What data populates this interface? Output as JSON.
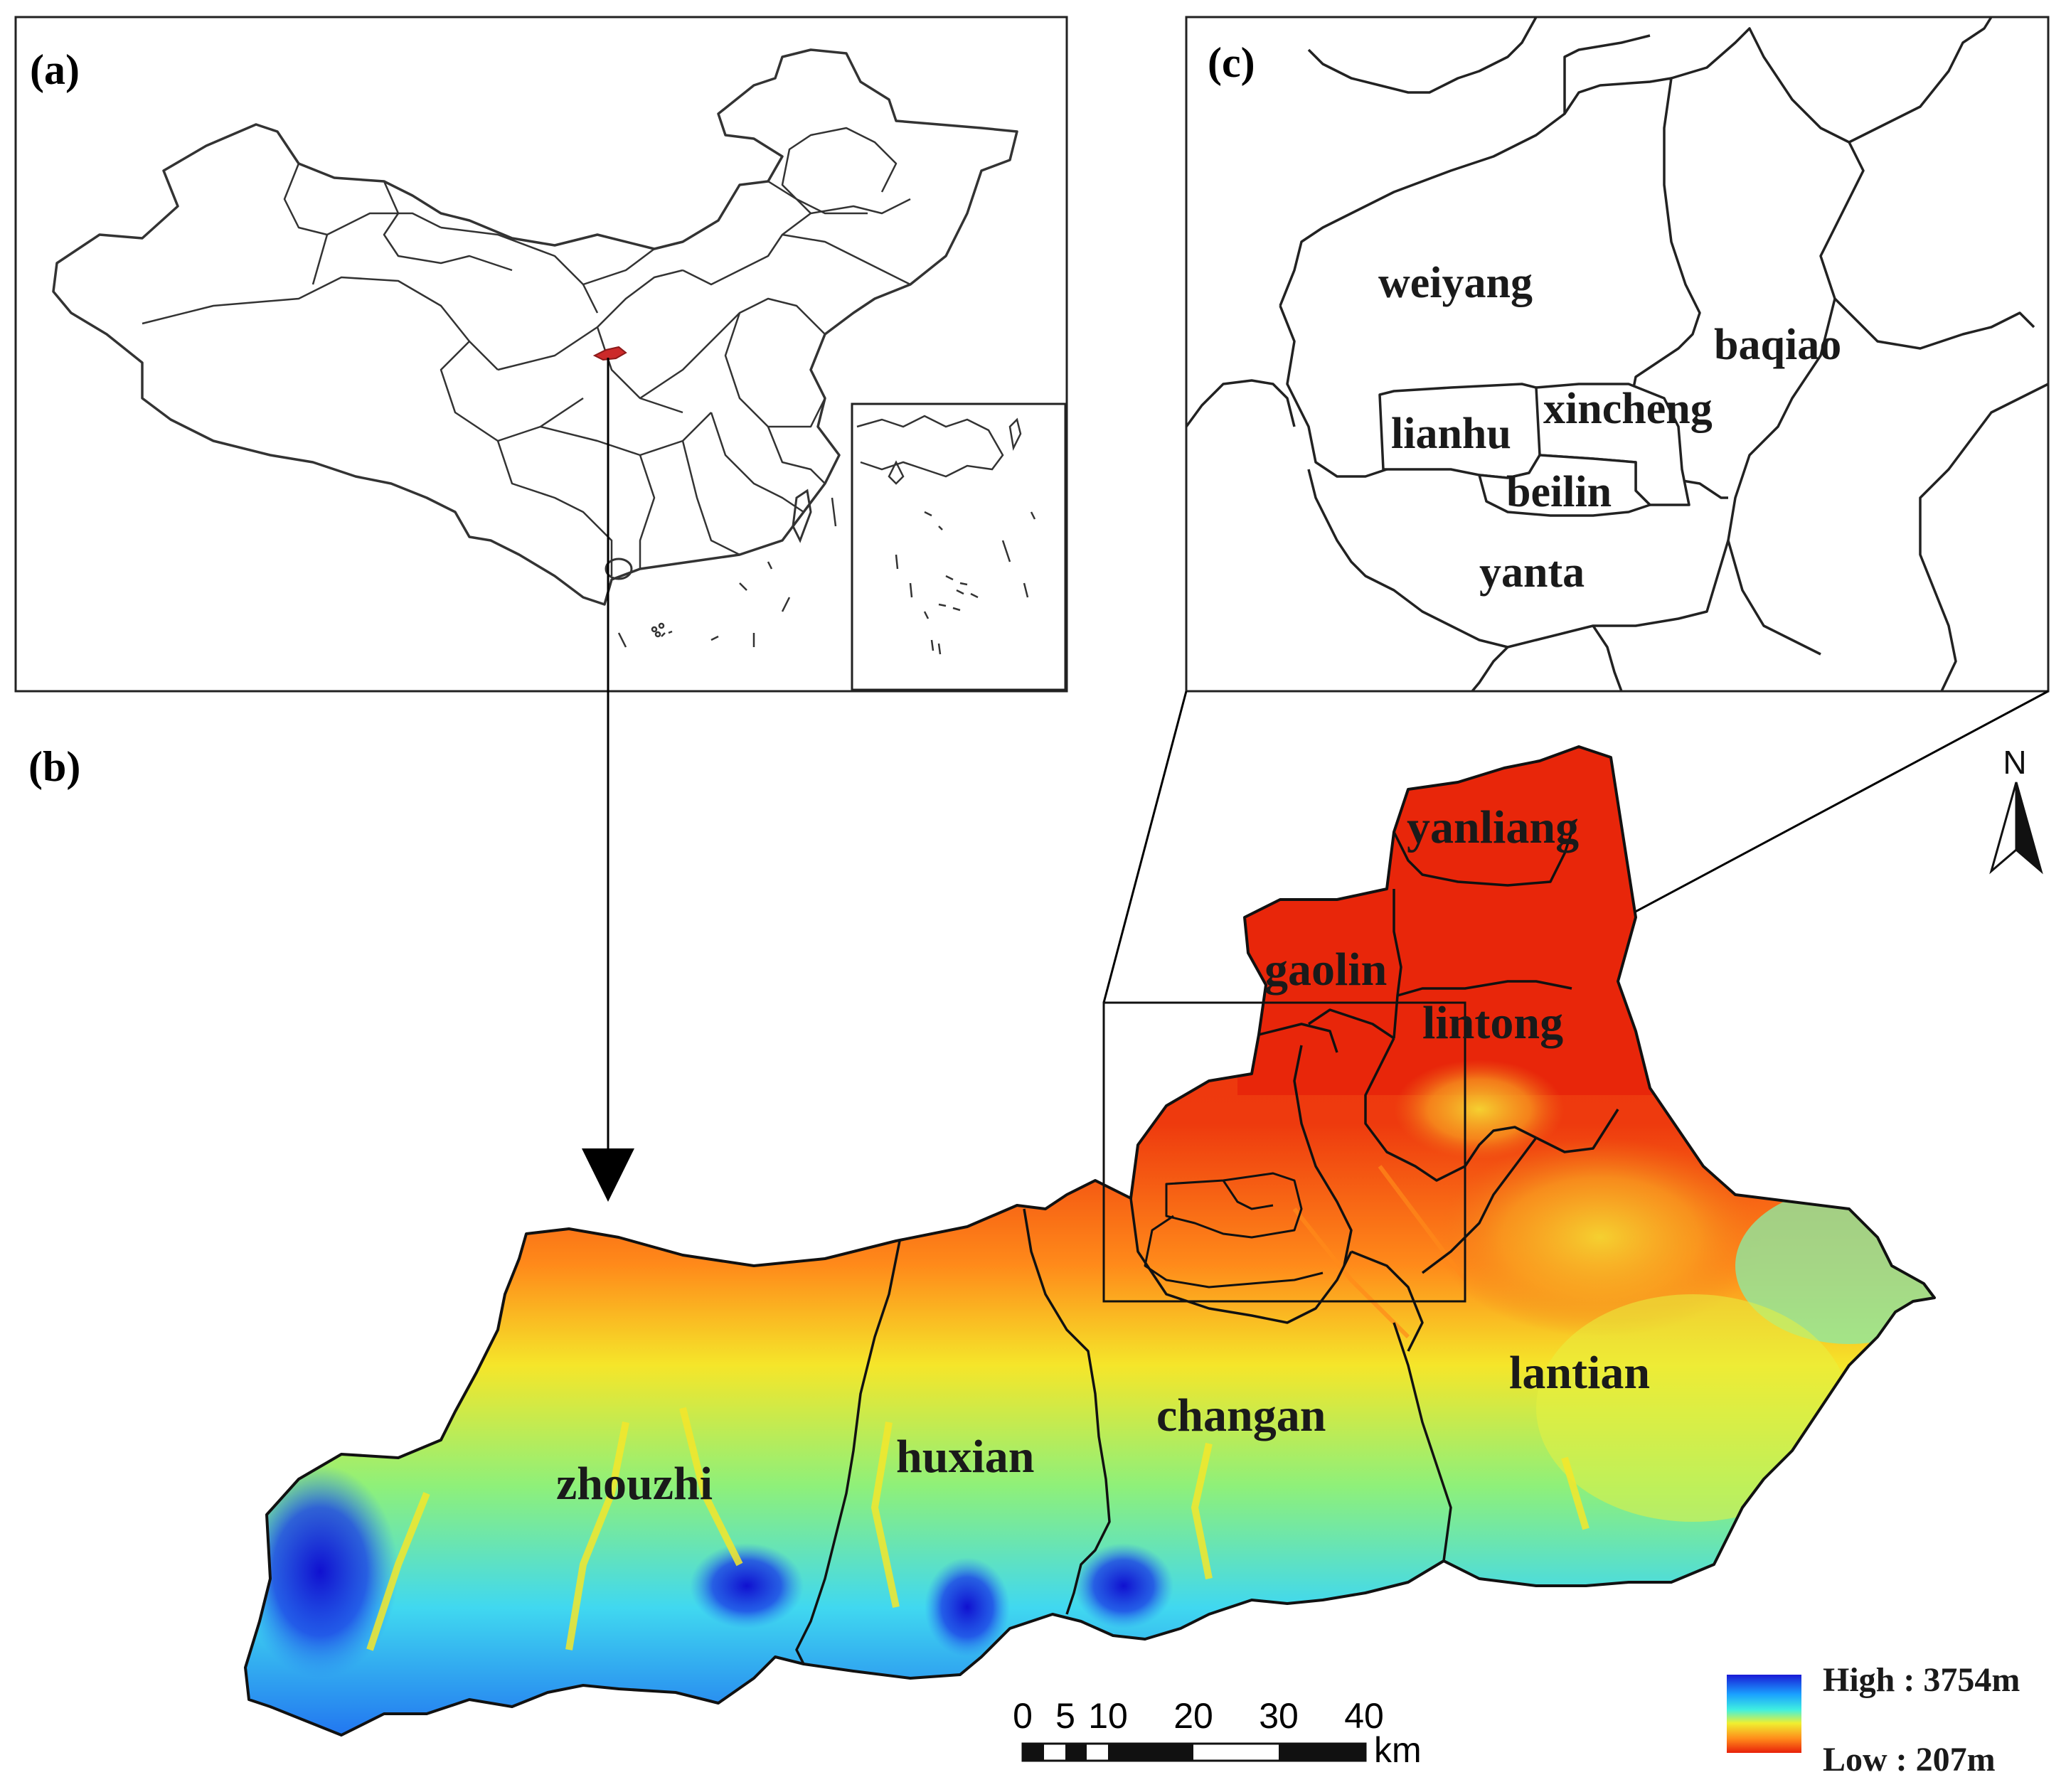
{
  "panels": {
    "a": "(a)",
    "b": "(b)",
    "c": "(c)"
  },
  "districts_b": {
    "yanliang": "yanliang",
    "gaolin": "gaolin",
    "lintong": "lintong",
    "lantian": "lantian",
    "changan": "changan",
    "huxian": "huxian",
    "zhouzhi": "zhouzhi"
  },
  "districts_c": {
    "weiyang": "weiyang",
    "baqiao": "baqiao",
    "xincheng": "xincheng",
    "lianhu": "lianhu",
    "beilin": "beilin",
    "yanta": "yanta"
  },
  "north_arrow": {
    "label": "N",
    "icon": "north-arrow-icon"
  },
  "scale_bar": {
    "ticks": [
      "0",
      "5",
      "10",
      "20",
      "30",
      "40"
    ],
    "unit": "km"
  },
  "legend": {
    "high": "High : 3754m",
    "low": "Low : 207m",
    "colors": [
      "#1a1ad6",
      "#1aa0ff",
      "#40f0e0",
      "#f0f030",
      "#ff8a1a",
      "#e8200a"
    ]
  },
  "colors": {
    "highlight_region": "#cc2a2a",
    "elevation_low": "#e8300c",
    "elevation_mid": "#f5e62a",
    "elevation_high": "#1a2ee0"
  }
}
